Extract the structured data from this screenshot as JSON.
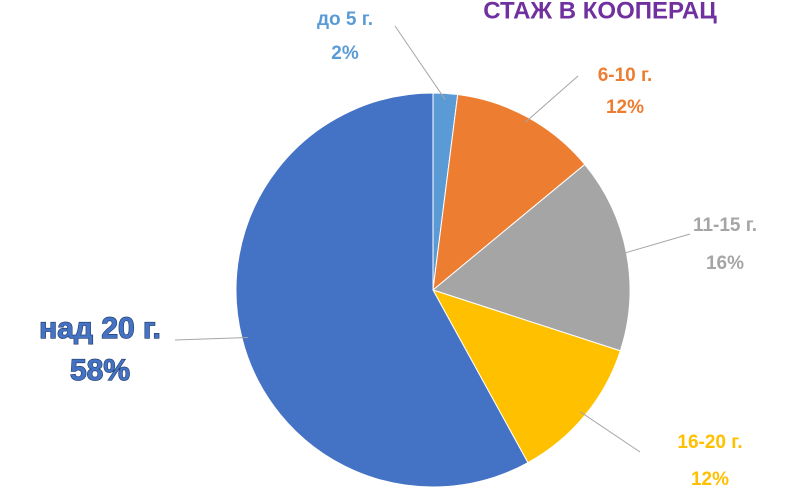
{
  "chart_data": {
    "type": "pie",
    "title": "СТАЖ В КООПЕРАЦ",
    "categories": [
      "до 5 г.",
      "6-10 г.",
      "11-15 г.",
      "16-20 г.",
      "над 20 г."
    ],
    "values": [
      2,
      12,
      16,
      12,
      58
    ],
    "value_labels": [
      "2%",
      "12%",
      "16%",
      "12%",
      "58%"
    ],
    "colors": [
      "#5b9bd5",
      "#ed7d31",
      "#a5a5a5",
      "#ffc000",
      "#4472c4"
    ]
  }
}
